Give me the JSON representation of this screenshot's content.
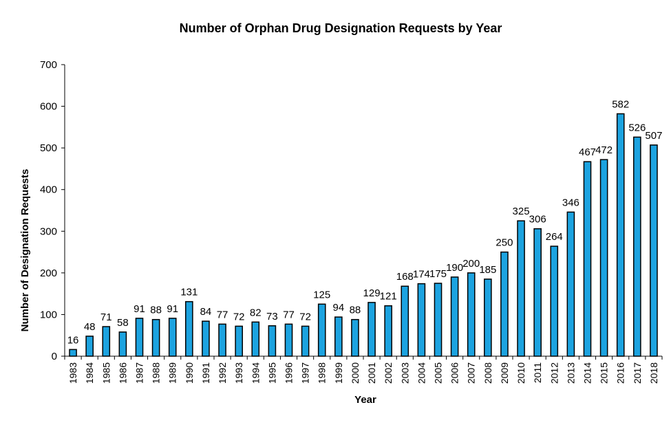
{
  "chart_data": {
    "type": "bar",
    "title": "Number of Orphan Drug Designation  Requests  by Year",
    "xlabel": "Year",
    "ylabel": "Number  of Designation  Requests",
    "ylim": [
      0,
      700
    ],
    "yticks": [
      0,
      100,
      200,
      300,
      400,
      500,
      600,
      700
    ],
    "bar_color": "#1CA3E0",
    "grid": false,
    "legend": "none",
    "categories": [
      "1983",
      "1984",
      "1985",
      "1986",
      "1987",
      "1988",
      "1989",
      "1990",
      "1991",
      "1992",
      "1993",
      "1994",
      "1995",
      "1996",
      "1997",
      "1998",
      "1999",
      "2000",
      "2001",
      "2002",
      "2003",
      "2004",
      "2005",
      "2006",
      "2007",
      "2008",
      "2009",
      "2010",
      "2011",
      "2012",
      "2013",
      "2014",
      "2015",
      "2016",
      "2017",
      "2018"
    ],
    "values": [
      16,
      48,
      71,
      58,
      91,
      88,
      91,
      131,
      84,
      77,
      72,
      82,
      73,
      77,
      72,
      125,
      94,
      88,
      129,
      121,
      168,
      174,
      175,
      190,
      200,
      185,
      250,
      325,
      306,
      264,
      346,
      467,
      472,
      582,
      526,
      507
    ]
  }
}
